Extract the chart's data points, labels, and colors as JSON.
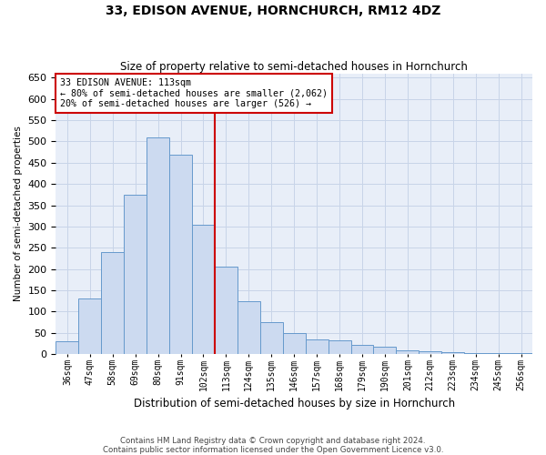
{
  "title": "33, EDISON AVENUE, HORNCHURCH, RM12 4DZ",
  "subtitle": "Size of property relative to semi-detached houses in Hornchurch",
  "xlabel": "Distribution of semi-detached houses by size in Hornchurch",
  "ylabel": "Number of semi-detached properties",
  "footnote1": "Contains HM Land Registry data © Crown copyright and database right 2024.",
  "footnote2": "Contains public sector information licensed under the Open Government Licence v3.0.",
  "bar_labels": [
    "36sqm",
    "47sqm",
    "58sqm",
    "69sqm",
    "80sqm",
    "91sqm",
    "102sqm",
    "113sqm",
    "124sqm",
    "135sqm",
    "146sqm",
    "157sqm",
    "168sqm",
    "179sqm",
    "190sqm",
    "201sqm",
    "212sqm",
    "223sqm",
    "234sqm",
    "245sqm",
    "256sqm"
  ],
  "bar_values": [
    30,
    130,
    240,
    375,
    510,
    470,
    305,
    205,
    125,
    75,
    50,
    35,
    32,
    22,
    18,
    10,
    8,
    5,
    3,
    3,
    2
  ],
  "bar_color": "#ccdaf0",
  "bar_edge_color": "#6699cc",
  "vline_color": "#cc0000",
  "annotation_title": "33 EDISON AVENUE: 113sqm",
  "annotation_line1": "← 80% of semi-detached houses are smaller (2,062)",
  "annotation_line2": "20% of semi-detached houses are larger (526) →",
  "annotation_box_color": "#ffffff",
  "annotation_box_edge": "#cc0000",
  "ylim": [
    0,
    660
  ],
  "yticks": [
    0,
    50,
    100,
    150,
    200,
    250,
    300,
    350,
    400,
    450,
    500,
    550,
    600,
    650
  ],
  "grid_color": "#c8d4e8",
  "bg_color": "#e8eef8"
}
